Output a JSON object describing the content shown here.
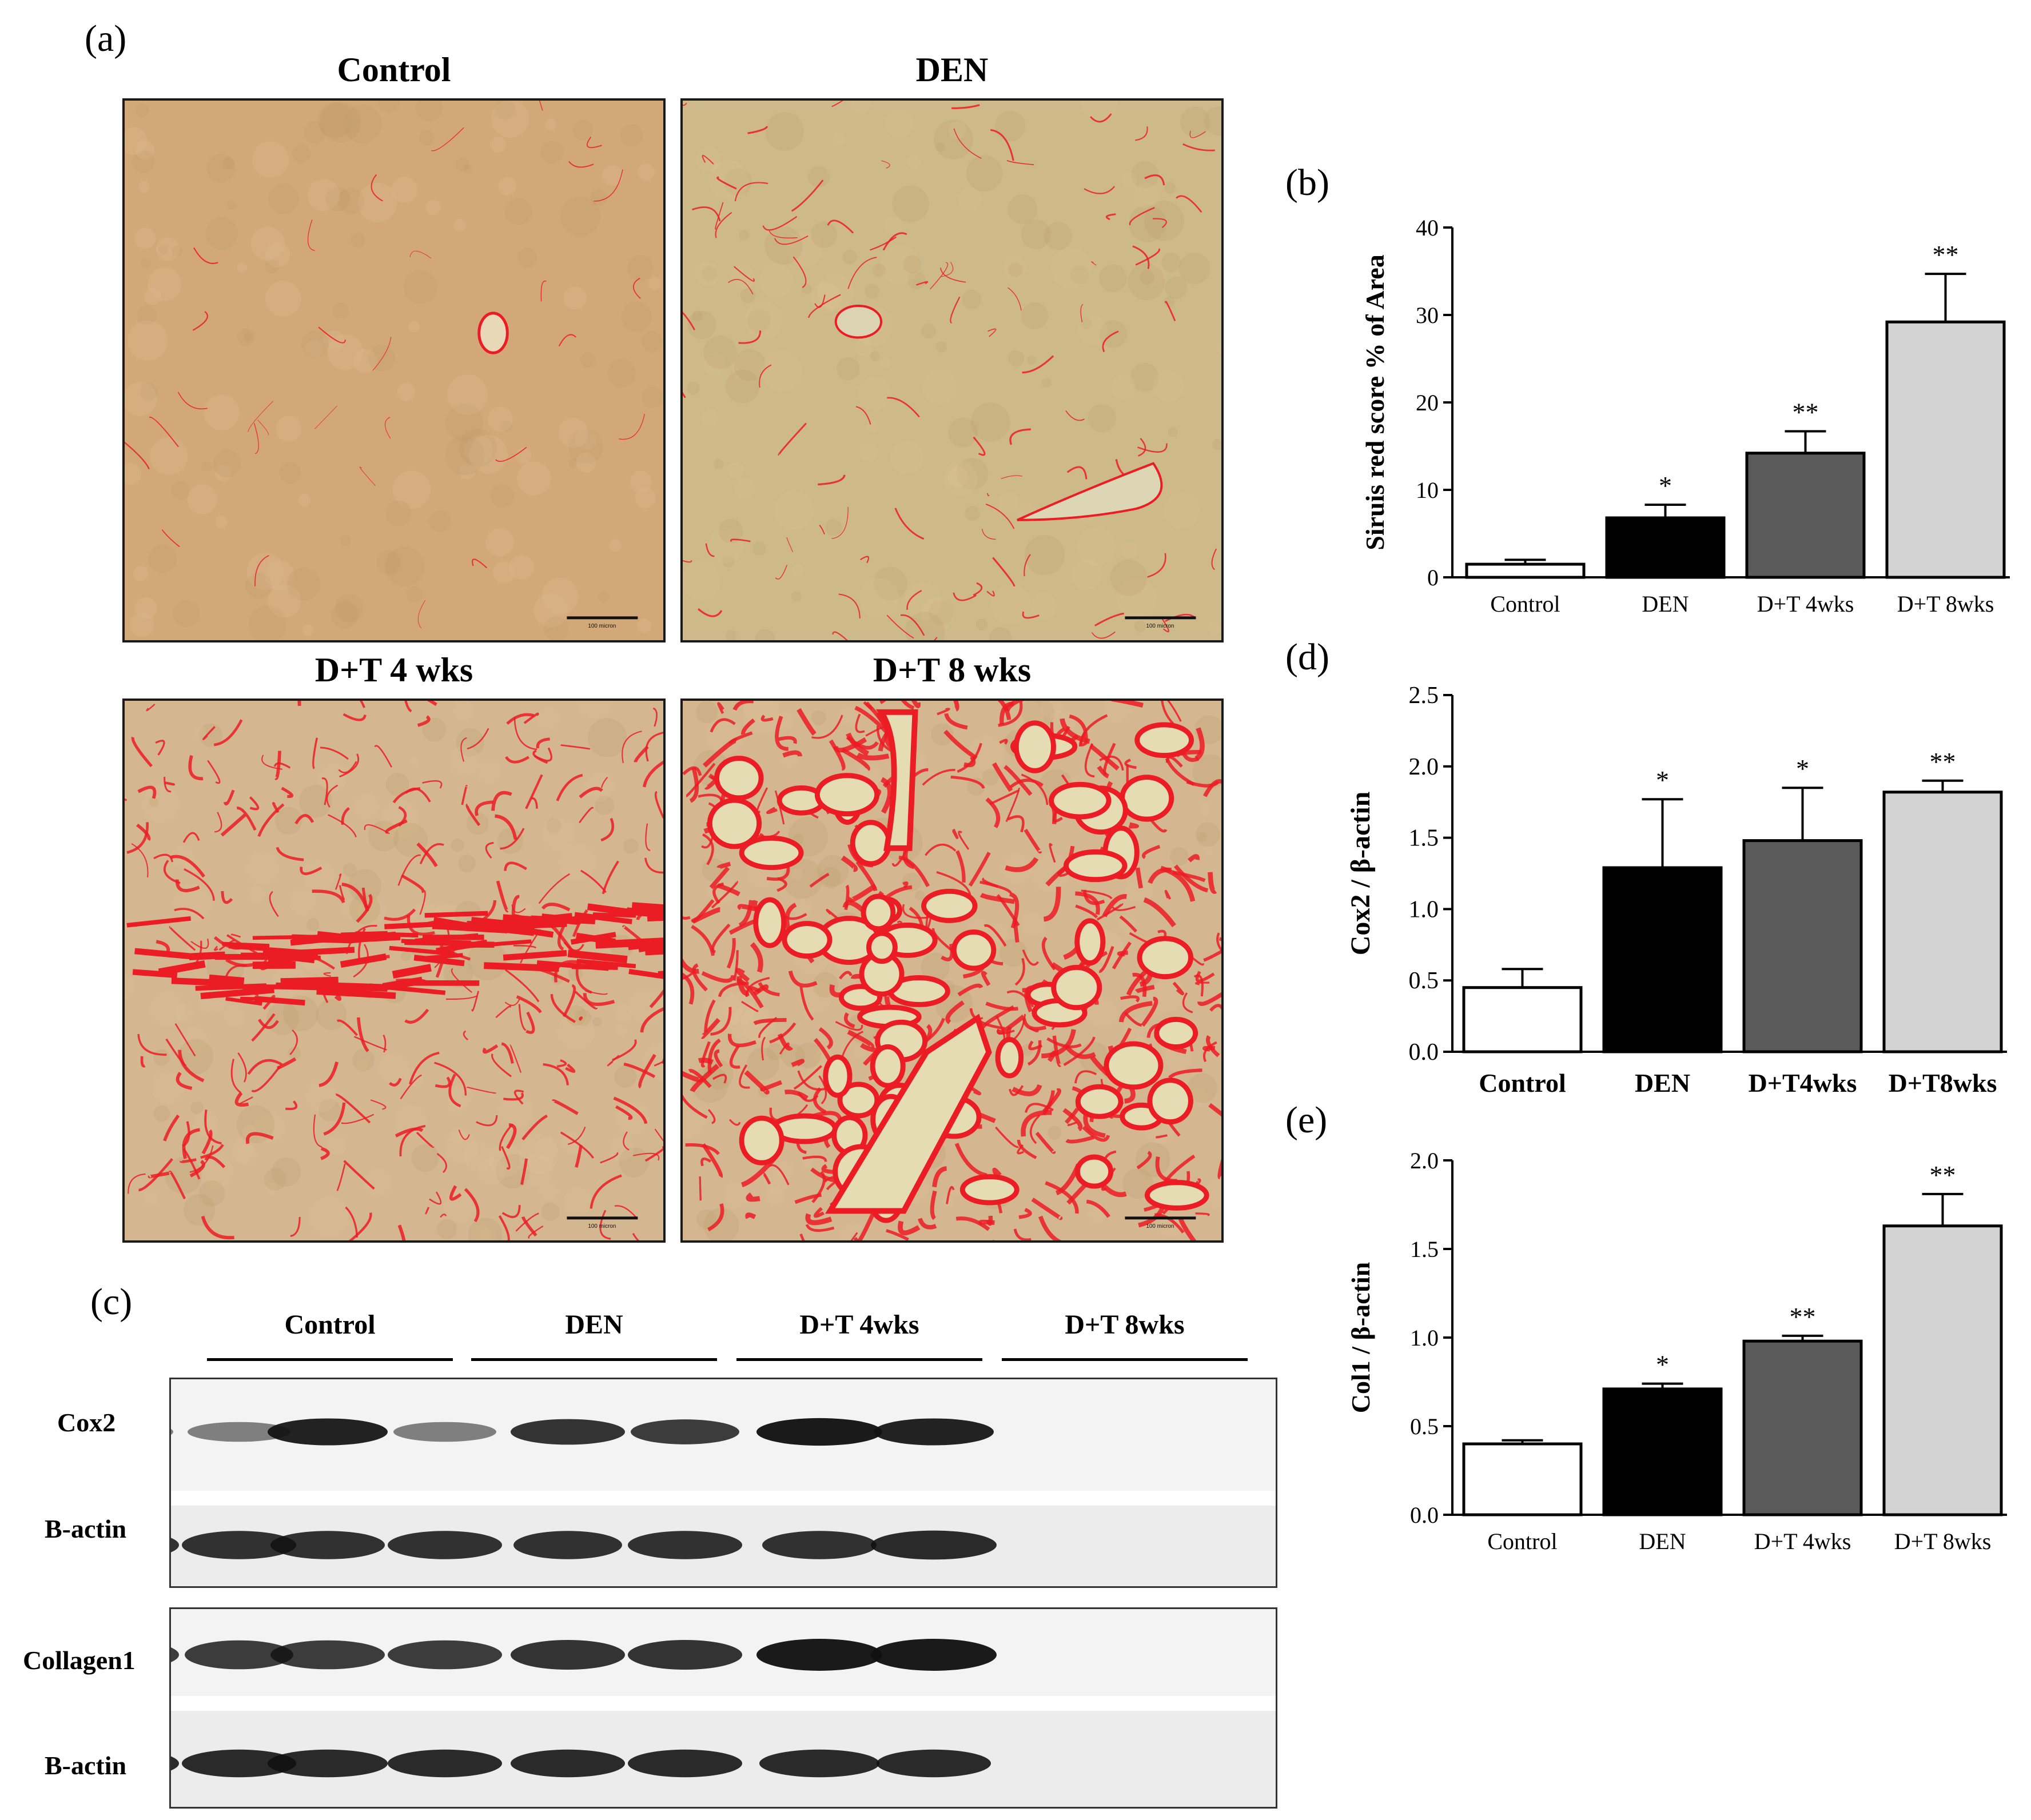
{
  "panel_a": {
    "letter": "(a)",
    "images": [
      {
        "title": "Control",
        "scale_bar": "100 micron"
      },
      {
        "title": "DEN",
        "scale_bar": "100 micron"
      },
      {
        "title": "D+T 4 wks",
        "scale_bar": "100 micron"
      },
      {
        "title": "D+T 8 wks",
        "scale_bar": "100 micron"
      }
    ],
    "fibrosis_level": [
      0.02,
      0.15,
      0.5,
      0.9
    ],
    "colors": {
      "tissue_base": "#d3a775",
      "stain": "#ec1c24",
      "lumen": "#e6dcb4"
    }
  },
  "panel_c": {
    "letter": "(c)",
    "groups": [
      "Control",
      "DEN",
      "D+T 4wks",
      "D+T 8wks"
    ],
    "rows": [
      "Cox2",
      "B-actin",
      "Collagen1",
      "B-actin"
    ]
  },
  "chart_data": [
    {
      "panel": "(b)",
      "type": "bar",
      "categories": [
        "Control",
        "DEN",
        "D+T 4wks",
        "D+T 8wks"
      ],
      "values": [
        1.5,
        6.8,
        14.2,
        29.2
      ],
      "errors": [
        0.5,
        1.5,
        2.5,
        5.5
      ],
      "significance": [
        "",
        "*",
        "**",
        "**"
      ],
      "ylabel": "Siruis red score % of Area",
      "ylim": [
        0,
        40
      ],
      "yticks": [
        "0",
        "10",
        "20",
        "30",
        "40"
      ],
      "bar_colors": [
        "#ffffff",
        "#000000",
        "#5a5a5a",
        "#d3d3d3"
      ]
    },
    {
      "panel": "(d)",
      "type": "bar",
      "categories": [
        "Control",
        "DEN",
        "D+T4wks",
        "D+T8wks"
      ],
      "values": [
        0.45,
        1.29,
        1.48,
        1.82
      ],
      "errors": [
        0.13,
        0.48,
        0.37,
        0.08
      ],
      "significance": [
        "",
        "*",
        "*",
        "**"
      ],
      "ylabel": "Cox2 / β-actin",
      "ylim": [
        0,
        2.5
      ],
      "yticks": [
        "0.0",
        "0.5",
        "1.0",
        "1.5",
        "2.0",
        "2.5"
      ],
      "bar_colors": [
        "#ffffff",
        "#000000",
        "#5a5a5a",
        "#d3d3d3"
      ]
    },
    {
      "panel": "(e)",
      "type": "bar",
      "categories": [
        "Control",
        "DEN",
        "D+T 4wks",
        "D+T 8wks"
      ],
      "values": [
        0.4,
        0.71,
        0.98,
        1.63
      ],
      "errors": [
        0.02,
        0.03,
        0.03,
        0.18
      ],
      "significance": [
        "",
        "*",
        "**",
        "**"
      ],
      "ylabel": "Col1 / β-actin",
      "ylim": [
        0,
        2.0
      ],
      "yticks": [
        "0.0",
        "0.5",
        "1.0",
        "1.5",
        "2.0"
      ],
      "bar_colors": [
        "#ffffff",
        "#000000",
        "#5a5a5a",
        "#d3d3d3"
      ]
    }
  ]
}
